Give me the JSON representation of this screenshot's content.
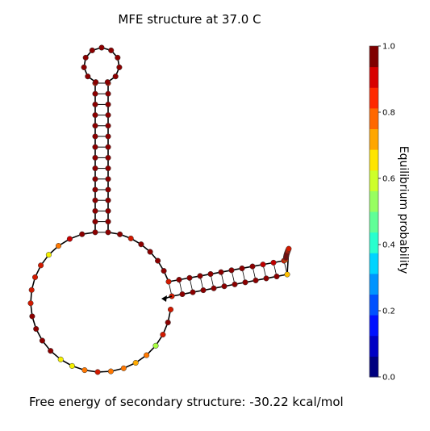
{
  "title": "MFE structure at 37.0 C",
  "footer": "Free energy of secondary structure: -30.22 kcal/mol",
  "colorbar": {
    "label": "Equilibrium probability",
    "ticks": [
      "0.0",
      "0.2",
      "0.4",
      "0.6",
      "0.8",
      "1.0"
    ],
    "colors": [
      "#00007f",
      "#0000c4",
      "#0010ff",
      "#0050ff",
      "#0094ff",
      "#00d4ff",
      "#29ffce",
      "#60ff97",
      "#97ff60",
      "#ceff29",
      "#ffe500",
      "#ffa600",
      "#ff6800",
      "#ff2900",
      "#d80000",
      "#7f0000"
    ]
  },
  "structure": {
    "hairpin_loop_probability": 0.97,
    "stem_probability": 0.98
  }
}
